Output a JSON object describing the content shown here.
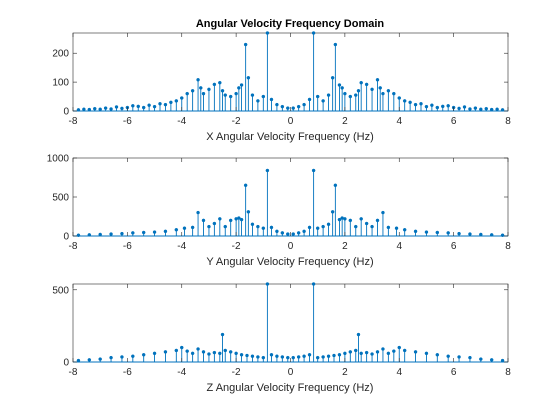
{
  "figure": {
    "title": "Angular Velocity Frequency Domain",
    "stem_color": "#0072BD"
  },
  "chart_data": [
    {
      "type": "stem",
      "title": "Angular Velocity Frequency Domain",
      "xlabel": "X Angular Velocity Frequency (Hz)",
      "ylabel": "",
      "xlim": [
        -8,
        8
      ],
      "ylim": [
        0,
        270
      ],
      "xticks": [
        -8,
        -6,
        -4,
        -2,
        0,
        2,
        4,
        6,
        8
      ],
      "yticks": [
        0,
        100,
        200
      ],
      "grid": false,
      "x": [
        -7.8,
        -7.6,
        -7.4,
        -7.2,
        -7.0,
        -6.8,
        -6.6,
        -6.4,
        -6.2,
        -6.0,
        -5.8,
        -5.6,
        -5.4,
        -5.2,
        -5.0,
        -4.8,
        -4.6,
        -4.4,
        -4.2,
        -4.0,
        -3.8,
        -3.6,
        -3.4,
        -3.3,
        -3.2,
        -3.0,
        -2.8,
        -2.6,
        -2.5,
        -2.4,
        -2.2,
        -2.0,
        -1.9,
        -1.8,
        -1.65,
        -1.55,
        -1.4,
        -1.2,
        -1.0,
        -0.85,
        -0.7,
        -0.5,
        -0.3,
        -0.1,
        0.1,
        0.3,
        0.5,
        0.7,
        0.85,
        1.0,
        1.2,
        1.4,
        1.55,
        1.65,
        1.8,
        1.9,
        2.0,
        2.2,
        2.4,
        2.5,
        2.6,
        2.8,
        3.0,
        3.2,
        3.3,
        3.4,
        3.6,
        3.8,
        4.0,
        4.2,
        4.4,
        4.6,
        4.8,
        5.0,
        5.2,
        5.4,
        5.6,
        5.8,
        6.0,
        6.2,
        6.4,
        6.6,
        6.8,
        7.0,
        7.2,
        7.4,
        7.6,
        7.8
      ],
      "y": [
        4,
        6,
        5,
        8,
        6,
        10,
        7,
        14,
        9,
        12,
        18,
        16,
        12,
        20,
        15,
        25,
        22,
        30,
        35,
        45,
        60,
        70,
        108,
        80,
        60,
        75,
        92,
        98,
        70,
        55,
        50,
        60,
        80,
        90,
        230,
        115,
        55,
        35,
        50,
        270,
        40,
        22,
        15,
        10,
        10,
        15,
        22,
        40,
        270,
        50,
        35,
        55,
        115,
        230,
        90,
        80,
        60,
        50,
        55,
        70,
        98,
        92,
        75,
        108,
        80,
        60,
        70,
        60,
        45,
        35,
        30,
        22,
        25,
        15,
        20,
        12,
        16,
        18,
        12,
        9,
        14,
        7,
        10,
        6,
        8,
        5,
        6,
        4
      ]
    },
    {
      "type": "stem",
      "xlabel": "Y Angular Velocity Frequency (Hz)",
      "ylabel": "",
      "xlim": [
        -8,
        8
      ],
      "ylim": [
        0,
        1000
      ],
      "xticks": [
        -8,
        -6,
        -4,
        -2,
        0,
        2,
        4,
        6,
        8
      ],
      "yticks": [
        0,
        500,
        1000
      ],
      "grid": false,
      "x": [
        -7.8,
        -7.4,
        -7.0,
        -6.6,
        -6.2,
        -5.8,
        -5.4,
        -5.0,
        -4.6,
        -4.2,
        -3.9,
        -3.6,
        -3.4,
        -3.2,
        -3.0,
        -2.8,
        -2.6,
        -2.4,
        -2.2,
        -2.0,
        -1.9,
        -1.8,
        -1.65,
        -1.55,
        -1.4,
        -1.2,
        -1.0,
        -0.85,
        -0.7,
        -0.5,
        -0.3,
        -0.1,
        0.1,
        0.3,
        0.5,
        0.7,
        0.85,
        1.0,
        1.2,
        1.4,
        1.55,
        1.65,
        1.8,
        1.9,
        2.0,
        2.2,
        2.4,
        2.6,
        2.8,
        3.0,
        3.2,
        3.4,
        3.6,
        3.9,
        4.2,
        4.6,
        5.0,
        5.4,
        5.8,
        6.2,
        6.6,
        7.0,
        7.4,
        7.8
      ],
      "y": [
        10,
        15,
        20,
        25,
        30,
        40,
        45,
        50,
        60,
        80,
        100,
        110,
        300,
        200,
        120,
        160,
        220,
        120,
        200,
        220,
        230,
        210,
        650,
        310,
        150,
        120,
        100,
        840,
        110,
        60,
        40,
        25,
        25,
        40,
        60,
        110,
        840,
        100,
        120,
        150,
        310,
        650,
        210,
        230,
        220,
        200,
        120,
        220,
        160,
        120,
        200,
        300,
        110,
        100,
        80,
        60,
        50,
        45,
        40,
        30,
        25,
        20,
        15,
        10
      ]
    },
    {
      "type": "stem",
      "xlabel": "Z Angular Velocity Frequency (Hz)",
      "ylabel": "",
      "xlim": [
        -8,
        8
      ],
      "ylim": [
        0,
        540
      ],
      "xticks": [
        -8,
        -6,
        -4,
        -2,
        0,
        2,
        4,
        6,
        8
      ],
      "yticks": [
        0,
        500
      ],
      "grid": false,
      "x": [
        -7.8,
        -7.4,
        -7.0,
        -6.6,
        -6.2,
        -5.8,
        -5.4,
        -5.0,
        -4.6,
        -4.2,
        -4.0,
        -3.8,
        -3.6,
        -3.4,
        -3.2,
        -3.0,
        -2.8,
        -2.6,
        -2.5,
        -2.4,
        -2.2,
        -2.0,
        -1.8,
        -1.6,
        -1.4,
        -1.2,
        -1.0,
        -0.85,
        -0.7,
        -0.5,
        -0.3,
        -0.1,
        0.1,
        0.3,
        0.5,
        0.7,
        0.85,
        1.0,
        1.2,
        1.4,
        1.6,
        1.8,
        2.0,
        2.2,
        2.4,
        2.5,
        2.6,
        2.8,
        3.0,
        3.2,
        3.4,
        3.6,
        3.8,
        4.0,
        4.2,
        4.6,
        5.0,
        5.4,
        5.8,
        6.2,
        6.6,
        7.0,
        7.4,
        7.8
      ],
      "y": [
        10,
        15,
        20,
        30,
        35,
        40,
        50,
        60,
        70,
        80,
        100,
        75,
        60,
        90,
        70,
        55,
        65,
        60,
        190,
        80,
        70,
        60,
        50,
        45,
        40,
        35,
        30,
        540,
        50,
        40,
        35,
        30,
        30,
        35,
        40,
        50,
        540,
        30,
        35,
        40,
        45,
        50,
        60,
        70,
        80,
        190,
        60,
        65,
        55,
        70,
        90,
        60,
        75,
        100,
        80,
        70,
        60,
        50,
        40,
        35,
        30,
        20,
        15,
        10
      ]
    }
  ]
}
